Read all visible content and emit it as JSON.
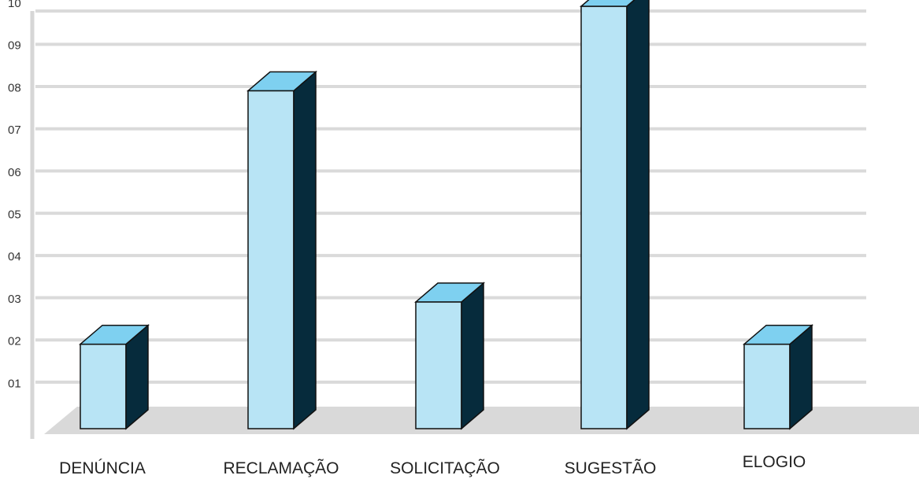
{
  "chart_data": {
    "type": "bar",
    "categories": [
      "DENÚNCIA",
      "RECLAMAÇÃO",
      "SOLICITAÇÃO",
      "SUGESTÃO",
      "ELOGIO"
    ],
    "values": [
      2,
      8,
      3,
      10,
      2
    ],
    "yticks": [
      "01",
      "02",
      "03",
      "04",
      "05",
      "06",
      "07",
      "08",
      "09",
      "10"
    ],
    "ylim": [
      0.6,
      10.4
    ],
    "grid": true,
    "style": "3d-column",
    "colors": {
      "front": "#b8e4f5",
      "top": "#7ed0f0",
      "side": "#062b3c",
      "floor": "#d9d9d9",
      "grid": "#dadada"
    }
  }
}
